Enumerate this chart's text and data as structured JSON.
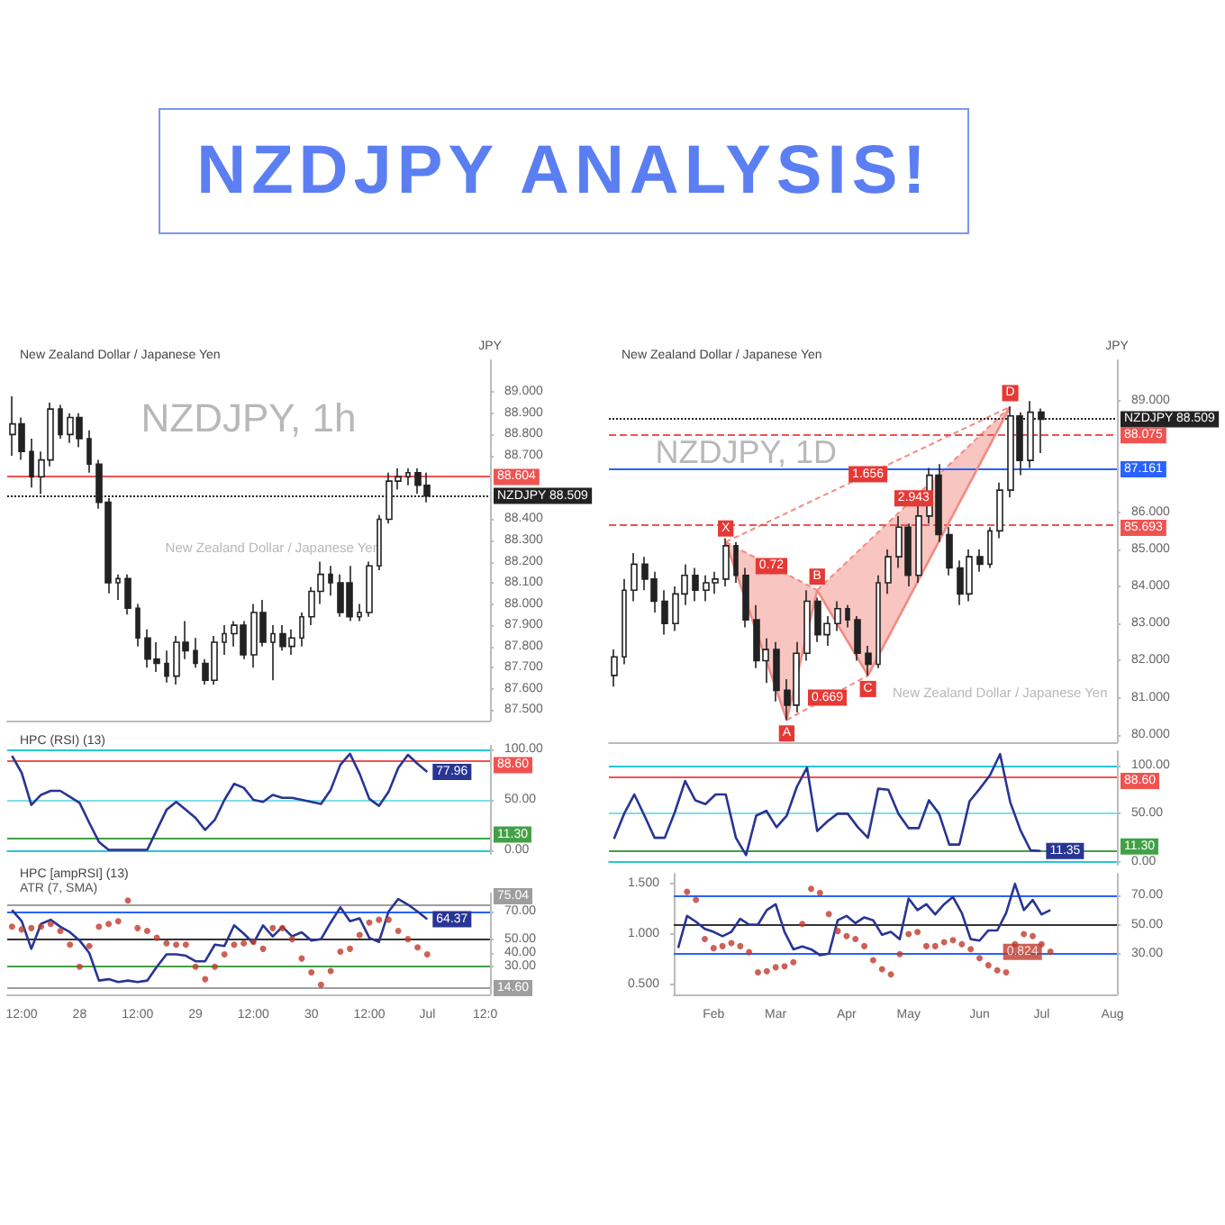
{
  "chart_data": [
    {
      "type": "other",
      "title": "NZDJPY ANALYSIS!"
    },
    {
      "type": "candlestick",
      "title": "New Zealand Dollar / Japanese Yen",
      "ylabel": "JPY",
      "color": "#222222",
      "tick_labels": "y",
      "categories": [
        null,
        null,
        null,
        null,
        null,
        null,
        null,
        null,
        null,
        null,
        null,
        null,
        null,
        null,
        null,
        null,
        null,
        null,
        null,
        null,
        null,
        null,
        null,
        null,
        null,
        null,
        null,
        null,
        null,
        null,
        null,
        null,
        null,
        null,
        null,
        null,
        null,
        null,
        null,
        null,
        null,
        null,
        null,
        null,
        null,
        null,
        null,
        null,
        null,
        null
      ],
      "ohlc": [
        [
          88.8,
          88.98,
          88.7,
          88.85
        ],
        [
          88.85,
          88.88,
          88.68,
          88.72
        ],
        [
          88.72,
          88.78,
          88.55,
          88.6
        ],
        [
          88.6,
          88.72,
          88.52,
          88.68
        ],
        [
          88.68,
          88.95,
          88.65,
          88.92
        ],
        [
          88.92,
          88.94,
          88.78,
          88.8
        ],
        [
          88.8,
          88.9,
          88.76,
          88.88
        ],
        [
          88.88,
          88.9,
          88.74,
          88.78
        ],
        [
          88.78,
          88.82,
          88.62,
          88.66
        ],
        [
          88.66,
          88.68,
          88.45,
          88.48
        ],
        [
          88.48,
          88.5,
          88.05,
          88.1
        ],
        [
          88.1,
          88.14,
          88.02,
          88.12
        ],
        [
          88.12,
          88.14,
          87.95,
          87.98
        ],
        [
          87.98,
          88.0,
          87.8,
          87.84
        ],
        [
          87.84,
          87.88,
          87.7,
          87.74
        ],
        [
          87.74,
          87.82,
          87.68,
          87.72
        ],
        [
          87.72,
          87.78,
          87.63,
          87.66
        ],
        [
          87.66,
          87.85,
          87.62,
          87.82
        ],
        [
          87.82,
          87.92,
          87.74,
          87.78
        ],
        [
          87.78,
          87.84,
          87.7,
          87.72
        ],
        [
          87.72,
          87.74,
          87.62,
          87.64
        ],
        [
          87.64,
          87.85,
          87.62,
          87.82
        ],
        [
          87.82,
          87.9,
          87.76,
          87.86
        ],
        [
          87.86,
          87.92,
          87.8,
          87.9
        ],
        [
          87.9,
          87.92,
          87.74,
          87.76
        ],
        [
          87.76,
          88.0,
          87.7,
          87.96
        ],
        [
          87.96,
          88.02,
          87.8,
          87.82
        ],
        [
          87.82,
          87.9,
          87.64,
          87.86
        ],
        [
          87.86,
          87.9,
          87.78,
          87.8
        ],
        [
          87.8,
          87.88,
          87.76,
          87.84
        ],
        [
          87.84,
          87.96,
          87.8,
          87.94
        ],
        [
          87.94,
          88.08,
          87.9,
          88.06
        ],
        [
          88.06,
          88.2,
          88.0,
          88.14
        ],
        [
          88.14,
          88.18,
          88.04,
          88.1
        ],
        [
          88.1,
          88.14,
          87.94,
          87.96
        ],
        [
          88.1,
          88.18,
          87.92,
          87.94
        ],
        [
          87.94,
          88.0,
          87.92,
          87.96
        ],
        [
          87.96,
          88.2,
          87.94,
          88.18
        ],
        [
          88.18,
          88.42,
          88.16,
          88.4
        ],
        [
          88.4,
          88.62,
          88.38,
          88.58
        ],
        [
          88.58,
          88.64,
          88.54,
          88.6
        ],
        [
          88.6,
          88.64,
          88.56,
          88.62
        ],
        [
          88.62,
          88.64,
          88.52,
          88.56
        ],
        [
          88.56,
          88.62,
          88.48,
          88.51
        ],
        null,
        null,
        null,
        null,
        null,
        null
      ],
      "ylim": [
        87.45,
        89.15
      ],
      "yticks": [
        {
          "value": 87.5,
          "label": "87.500"
        },
        {
          "value": 87.6,
          "label": "87.600"
        },
        {
          "value": 87.7,
          "label": "87.700"
        },
        {
          "value": 87.8,
          "label": "87.800"
        },
        {
          "value": 87.9,
          "label": "87.900"
        },
        {
          "value": 88,
          "label": "88.000"
        },
        {
          "value": 88.1,
          "label": "88.100"
        },
        {
          "value": 88.2,
          "label": "88.200"
        },
        {
          "value": 88.3,
          "label": "88.300"
        },
        {
          "value": 88.4,
          "label": "88.400"
        },
        {
          "value": 88.7,
          "label": "88.700"
        },
        {
          "value": 88.8,
          "label": "88.800"
        },
        {
          "value": 88.9,
          "label": "88.900"
        },
        {
          "value": 89,
          "label": "89.000"
        }
      ],
      "ref_lines": [
        {
          "axis": "y",
          "value": 88.604,
          "label": "88.604",
          "color": "#ef5350"
        },
        {
          "axis": "y",
          "value": 88.509,
          "label": "NZDJPY 88.509",
          "color": "#222222",
          "line_style": "dotted"
        }
      ],
      "annotations": [
        "NZDJPY, 1h",
        "New Zealand Dollar / Japanese Yen"
      ]
    },
    {
      "type": "line",
      "title": "HPC (RSI) (13)",
      "tick_labels": "y",
      "ylim": [
        -4,
        104
      ],
      "yticks": [
        {
          "value": 0,
          "label": "0.00"
        },
        {
          "value": 50,
          "label": "50.00"
        },
        {
          "value": 100,
          "label": "100.00"
        }
      ],
      "categories": [
        null,
        null,
        null,
        null,
        null,
        null,
        null,
        null,
        null,
        null,
        null,
        null,
        null,
        null,
        null,
        null,
        null,
        null,
        null,
        null,
        null,
        null,
        null,
        null,
        null,
        null,
        null,
        null,
        null,
        null,
        null,
        null,
        null,
        null,
        null,
        null,
        null,
        null,
        null,
        null,
        null,
        null,
        null,
        null,
        null,
        null,
        null,
        null,
        null,
        null
      ],
      "series": [
        {
          "color": "#283593",
          "marker": "none",
          "values": [
            94,
            77,
            45,
            55,
            59,
            59,
            53,
            47,
            27,
            8,
            0,
            0,
            0,
            0,
            0,
            20,
            40,
            48,
            40,
            32,
            20,
            30,
            50,
            66,
            62,
            50,
            48,
            55,
            52,
            52,
            50,
            48,
            46,
            60,
            85,
            96,
            76,
            51,
            44,
            58,
            82,
            95,
            86,
            77.96,
            null,
            null,
            null,
            null,
            null,
            null
          ],
          "value_labels": [
            null,
            null,
            null,
            null,
            null,
            null,
            null,
            null,
            null,
            null,
            null,
            null,
            null,
            null,
            null,
            null,
            null,
            null,
            null,
            null,
            null,
            null,
            null,
            null,
            null,
            null,
            null,
            null,
            null,
            null,
            null,
            null,
            null,
            null,
            null,
            null,
            null,
            null,
            null,
            null,
            null,
            null,
            null,
            "77.96",
            null,
            null,
            null,
            null,
            null,
            null
          ]
        }
      ],
      "ref_lines": [
        {
          "axis": "y",
          "value": 100,
          "label": null,
          "color": "#26c6da"
        },
        {
          "axis": "y",
          "value": 88.6,
          "label": "88.60",
          "color": "#ef5350"
        },
        {
          "axis": "y",
          "value": 50,
          "label": null,
          "color": "#80deea"
        },
        {
          "axis": "y",
          "value": 11.3,
          "label": "11.30",
          "color": "#43a047"
        },
        {
          "axis": "y",
          "value": 0,
          "label": null,
          "color": "#26c6da"
        }
      ]
    },
    {
      "type": "line",
      "title": "HPC [ampRSI] (13)",
      "subtitle": "ATR (7, SMA)",
      "ylim": [
        10,
        83
      ],
      "yticks": [
        {
          "value": 30,
          "label": "30.00"
        },
        {
          "value": 40,
          "label": "40.00"
        },
        {
          "value": 50,
          "label": "50.00"
        },
        {
          "value": 70,
          "label": "70.00"
        }
      ],
      "categories": [
        null,
        "12:00",
        null,
        null,
        null,
        null,
        null,
        "28",
        null,
        null,
        null,
        null,
        null,
        "12:00",
        null,
        null,
        null,
        null,
        null,
        "29",
        null,
        null,
        null,
        null,
        null,
        "12:00",
        null,
        null,
        null,
        null,
        null,
        "30",
        null,
        null,
        null,
        null,
        null,
        "12:00",
        null,
        null,
        null,
        null,
        null,
        "Jul",
        null,
        null,
        null,
        null,
        null,
        "12:0"
      ],
      "series": [
        {
          "color": "#283593",
          "marker": "none",
          "values": [
            71,
            63,
            43,
            61,
            64,
            59,
            55,
            49,
            40,
            20,
            21,
            19,
            20,
            19,
            20,
            30,
            39,
            39,
            38,
            34,
            34,
            46,
            45,
            60,
            54,
            47,
            60,
            52,
            59,
            52,
            55,
            49,
            50,
            62,
            73,
            63,
            65,
            51,
            48,
            70,
            79,
            75,
            70,
            64.37,
            null,
            null,
            null,
            null,
            null,
            null
          ],
          "value_labels": [
            null,
            null,
            null,
            null,
            null,
            null,
            null,
            null,
            null,
            null,
            null,
            null,
            null,
            null,
            null,
            null,
            null,
            null,
            null,
            null,
            null,
            null,
            null,
            null,
            null,
            null,
            null,
            null,
            null,
            null,
            null,
            null,
            null,
            null,
            null,
            null,
            null,
            null,
            null,
            null,
            null,
            null,
            null,
            "64.37",
            null,
            null,
            null,
            null,
            null,
            null
          ]
        },
        {
          "type": "scatter",
          "color": "#c0392b",
          "marker": "circle",
          "values": [
            59,
            57,
            58,
            59,
            61,
            56,
            46,
            30,
            45,
            59,
            61,
            63,
            78,
            58,
            56,
            51,
            47,
            46,
            46,
            30,
            21,
            30,
            39,
            46,
            47,
            48,
            43,
            58,
            58,
            50,
            36,
            26,
            17,
            27,
            41,
            43,
            53,
            62,
            64,
            64,
            56,
            50,
            44,
            39,
            null,
            null,
            null,
            null,
            null,
            null
          ]
        }
      ],
      "ref_lines": [
        {
          "axis": "y",
          "value": 75.04,
          "label": "75.04",
          "color": "#9e9e9e"
        },
        {
          "axis": "y",
          "value": 70,
          "label": null,
          "color": "#2962ff"
        },
        {
          "axis": "y",
          "value": 50,
          "label": null,
          "color": "#333333"
        },
        {
          "axis": "y",
          "value": 30,
          "label": null,
          "color": "#43a047"
        },
        {
          "axis": "y",
          "value": 14.6,
          "label": "14.60",
          "color": "#9e9e9e"
        }
      ]
    },
    {
      "type": "candlestick",
      "title": "New Zealand Dollar / Japanese Yen",
      "ylabel": "JPY",
      "color": "#222222",
      "tick_labels": "y",
      "categories": [
        null,
        null,
        null,
        null,
        null,
        null,
        null,
        null,
        null,
        null,
        null,
        null,
        null,
        null,
        null,
        null,
        null,
        null,
        null,
        null,
        null,
        null,
        null,
        null,
        null,
        null,
        null,
        null,
        null,
        null,
        null,
        null,
        null,
        null,
        null,
        null,
        null,
        null,
        null,
        null,
        null,
        null,
        null,
        null,
        null,
        null,
        null,
        null,
        null,
        null
      ],
      "ohlc": [
        [
          81.6,
          82.3,
          81.3,
          82.1
        ],
        [
          82.1,
          84.2,
          81.9,
          83.9
        ],
        [
          83.9,
          84.9,
          83.6,
          84.6
        ],
        [
          84.6,
          84.8,
          83.9,
          84.2
        ],
        [
          84.2,
          84.4,
          83.3,
          83.6
        ],
        [
          83.6,
          83.9,
          82.7,
          83.0
        ],
        [
          83.0,
          84.0,
          82.8,
          83.8
        ],
        [
          83.8,
          84.6,
          83.5,
          84.3
        ],
        [
          84.3,
          84.5,
          83.6,
          83.9
        ],
        [
          83.9,
          84.3,
          83.6,
          84.1
        ],
        [
          84.1,
          84.4,
          83.8,
          84.2
        ],
        [
          84.2,
          85.3,
          84.0,
          85.1
        ],
        [
          85.1,
          85.2,
          84.1,
          84.3
        ],
        [
          84.3,
          84.5,
          82.9,
          83.1
        ],
        [
          83.1,
          83.5,
          81.8,
          82.0
        ],
        [
          82.0,
          82.6,
          81.4,
          82.3
        ],
        [
          82.3,
          82.5,
          80.9,
          81.2
        ],
        [
          81.2,
          81.5,
          80.4,
          80.8
        ],
        [
          80.8,
          82.5,
          80.6,
          82.2
        ],
        [
          82.2,
          83.9,
          82.0,
          83.6
        ],
        [
          83.6,
          83.7,
          82.5,
          82.7
        ],
        [
          82.7,
          83.2,
          82.4,
          83.0
        ],
        [
          83.0,
          83.6,
          82.8,
          83.4
        ],
        [
          83.4,
          83.5,
          82.9,
          83.1
        ],
        [
          83.1,
          83.2,
          82.0,
          82.2
        ],
        [
          82.2,
          82.4,
          81.6,
          81.9
        ],
        [
          81.9,
          84.3,
          81.8,
          84.1
        ],
        [
          84.1,
          85.0,
          83.8,
          84.8
        ],
        [
          84.8,
          85.9,
          84.5,
          85.6
        ],
        [
          85.6,
          85.7,
          84.0,
          84.3
        ],
        [
          84.3,
          86.2,
          84.1,
          85.9
        ],
        [
          85.9,
          87.2,
          85.7,
          87.0
        ],
        [
          87.0,
          87.3,
          85.2,
          85.4
        ],
        [
          85.4,
          85.6,
          84.3,
          84.5
        ],
        [
          84.5,
          84.7,
          83.5,
          83.8
        ],
        [
          83.8,
          85.0,
          83.6,
          84.8
        ],
        [
          84.8,
          85.0,
          84.4,
          84.6
        ],
        [
          84.6,
          85.6,
          84.5,
          85.5
        ],
        [
          85.5,
          86.8,
          85.3,
          86.6
        ],
        [
          86.6,
          88.85,
          86.4,
          88.6
        ],
        [
          88.6,
          88.7,
          87.0,
          87.4
        ],
        [
          87.4,
          89.0,
          87.2,
          88.7
        ],
        [
          88.7,
          88.8,
          87.6,
          88.51
        ],
        null,
        null,
        null,
        null,
        null,
        null,
        null
      ],
      "series": [
        {
          "type": "line",
          "color": "#f28b82",
          "marker": "none",
          "values": [
            null,
            null,
            null,
            null,
            null,
            null,
            null,
            null,
            null,
            null,
            null,
            85.2,
            null,
            null,
            null,
            null,
            null,
            80.4,
            null,
            null,
            83.9,
            null,
            null,
            null,
            null,
            81.6,
            null,
            null,
            null,
            null,
            null,
            null,
            null,
            null,
            null,
            null,
            null,
            null,
            null,
            88.85,
            null,
            null,
            null,
            null,
            null,
            null,
            null,
            null,
            null,
            null
          ],
          "value_labels": [
            null,
            null,
            null,
            null,
            null,
            null,
            null,
            null,
            null,
            null,
            null,
            "X",
            null,
            null,
            null,
            null,
            null,
            "A",
            null,
            null,
            "B",
            null,
            null,
            null,
            null,
            "C",
            null,
            null,
            null,
            null,
            null,
            null,
            null,
            null,
            null,
            null,
            null,
            null,
            null,
            "D",
            null,
            null,
            null,
            null,
            null,
            null,
            null,
            null,
            null,
            null
          ]
        }
      ],
      "ylim": [
        79.8,
        90.1
      ],
      "yticks": [
        {
          "value": 80,
          "label": "80.000"
        },
        {
          "value": 81,
          "label": "81.000"
        },
        {
          "value": 82,
          "label": "82.000"
        },
        {
          "value": 83,
          "label": "83.000"
        },
        {
          "value": 84,
          "label": "84.000"
        },
        {
          "value": 85,
          "label": "85.000"
        },
        {
          "value": 86,
          "label": "86.000"
        },
        {
          "value": 89,
          "label": "89.000"
        }
      ],
      "ref_lines": [
        {
          "axis": "y",
          "value": 88.509,
          "label": "NZDJPY 88.509",
          "color": "#222222",
          "line_style": "dotted"
        },
        {
          "axis": "y",
          "value": 88.075,
          "label": "88.075",
          "color": "#ef5350",
          "line_style": "dashed"
        },
        {
          "axis": "y",
          "value": 87.161,
          "label": "87.161",
          "color": "#2962ff"
        },
        {
          "axis": "y",
          "value": 85.693,
          "label": "85.693",
          "color": "#ef5350",
          "line_style": "dashed"
        }
      ],
      "annotations": [
        "NZDJPY, 1D",
        "New Zealand Dollar / Japanese Yen",
        "0.72",
        "0.669",
        "1.656",
        "2.943"
      ]
    },
    {
      "type": "line",
      "tick_labels": "y",
      "ylim": [
        -3,
        115
      ],
      "yticks": [
        {
          "value": 0,
          "label": "0.00"
        },
        {
          "value": 50,
          "label": "50.00"
        },
        {
          "value": 100,
          "label": "100.00"
        }
      ],
      "categories": [
        null,
        null,
        null,
        null,
        null,
        null,
        null,
        null,
        null,
        null,
        null,
        null,
        null,
        null,
        null,
        null,
        null,
        null,
        null,
        null,
        null,
        null,
        null,
        null,
        null,
        null,
        null,
        null,
        null,
        null,
        null,
        null,
        null,
        null,
        null,
        null,
        null,
        null,
        null,
        null,
        null,
        null,
        null,
        null,
        null,
        null,
        null,
        null,
        null,
        null
      ],
      "series": [
        {
          "color": "#283593",
          "marker": "none",
          "values": [
            24,
            50,
            70,
            48,
            25,
            25,
            52,
            84,
            64,
            60,
            70,
            70,
            25,
            7,
            48,
            53,
            36,
            48,
            78,
            98,
            32,
            42,
            50,
            50,
            36,
            25,
            76,
            75,
            50,
            35,
            35,
            64,
            50,
            18,
            18,
            63,
            76,
            90,
            112,
            62,
            33,
            12,
            11.35,
            null,
            null,
            null,
            null,
            null,
            null,
            null
          ],
          "value_labels": [
            null,
            null,
            null,
            null,
            null,
            null,
            null,
            null,
            null,
            null,
            null,
            null,
            null,
            null,
            null,
            null,
            null,
            null,
            null,
            null,
            null,
            null,
            null,
            null,
            null,
            null,
            null,
            null,
            null,
            null,
            null,
            null,
            null,
            null,
            null,
            null,
            null,
            null,
            null,
            null,
            null,
            null,
            "11.35",
            null,
            null,
            null,
            null,
            null,
            null,
            null
          ]
        }
      ],
      "ref_lines": [
        {
          "axis": "y",
          "value": 100,
          "label": null,
          "color": "#26c6da"
        },
        {
          "axis": "y",
          "value": 88.6,
          "label": "88.60",
          "color": "#ef5350"
        },
        {
          "axis": "y",
          "value": 50,
          "label": null,
          "color": "#80deea"
        },
        {
          "axis": "y",
          "value": 11.3,
          "label": "11.30",
          "color": "#43a047"
        },
        {
          "axis": "y",
          "value": 0,
          "label": null,
          "color": "#26c6da"
        }
      ]
    },
    {
      "type": "line",
      "ylim": [
        0.4,
        1.6
      ],
      "y2lim": [
        2,
        85
      ],
      "categories": [
        null,
        null,
        null,
        null,
        "Feb",
        null,
        null,
        null,
        null,
        null,
        null,
        "Mar",
        null,
        null,
        null,
        null,
        null,
        null,
        null,
        "Apr",
        null,
        null,
        null,
        null,
        null,
        null,
        "May",
        null,
        null,
        null,
        null,
        null,
        null,
        null,
        "Jun",
        null,
        null,
        null,
        null,
        null,
        null,
        "Jul",
        null,
        null,
        null,
        null,
        null,
        null,
        null,
        "Aug"
      ],
      "yticks": [
        {
          "value": 0.5,
          "label": "0.500"
        },
        {
          "value": 1,
          "label": "1.000"
        },
        {
          "value": 1.5,
          "label": "1.500"
        }
      ],
      "y2ticks": [
        {
          "value": 30,
          "label": "30.00"
        },
        {
          "value": 50,
          "label": "50.00"
        },
        {
          "value": 70,
          "label": "70.00"
        }
      ],
      "series": [
        {
          "color": "#283593",
          "marker": "none",
          "axis": "y2",
          "values": [
            34,
            56,
            52,
            47,
            45,
            42,
            45,
            54,
            50,
            50,
            60,
            64,
            45,
            33,
            35,
            33,
            29,
            30,
            53,
            56,
            51,
            55,
            53,
            43,
            45,
            40,
            68,
            60,
            64,
            57,
            64,
            69,
            58,
            40,
            39,
            46,
            46,
            58,
            78,
            60,
            67,
            57,
            60,
            null,
            null,
            null,
            null,
            null,
            null,
            null
          ]
        },
        {
          "type": "scatter",
          "color": "#c0392b",
          "marker": "circle",
          "axis": "y",
          "values": [
            null,
            1.42,
            1.34,
            0.95,
            0.86,
            0.88,
            0.91,
            0.88,
            0.82,
            0.62,
            0.63,
            0.67,
            0.68,
            0.72,
            1.1,
            1.45,
            1.41,
            1.2,
            1.03,
            0.98,
            0.95,
            0.88,
            0.74,
            0.65,
            0.6,
            0.8,
            1.0,
            1.02,
            0.88,
            0.88,
            0.92,
            0.94,
            0.9,
            0.85,
            0.76,
            0.69,
            0.64,
            0.62,
            0.9,
            1.0,
            0.98,
            0.9,
            0.824,
            null,
            null,
            null,
            null,
            null,
            null,
            null
          ],
          "value_labels": [
            null,
            null,
            null,
            null,
            null,
            null,
            null,
            null,
            null,
            null,
            null,
            null,
            null,
            null,
            null,
            null,
            null,
            null,
            null,
            null,
            null,
            null,
            null,
            null,
            null,
            null,
            null,
            null,
            null,
            null,
            null,
            null,
            null,
            null,
            null,
            null,
            null,
            null,
            null,
            null,
            null,
            null,
            "0.824",
            null,
            null,
            null,
            null,
            null,
            null,
            null
          ]
        }
      ],
      "ref_lines": [
        {
          "axis": "y2",
          "value": 70,
          "label": null,
          "color": "#2962ff"
        },
        {
          "axis": "y2",
          "value": 50,
          "label": null,
          "color": "#333333"
        },
        {
          "axis": "y2",
          "value": 30,
          "label": null,
          "color": "#2962ff"
        }
      ]
    }
  ]
}
